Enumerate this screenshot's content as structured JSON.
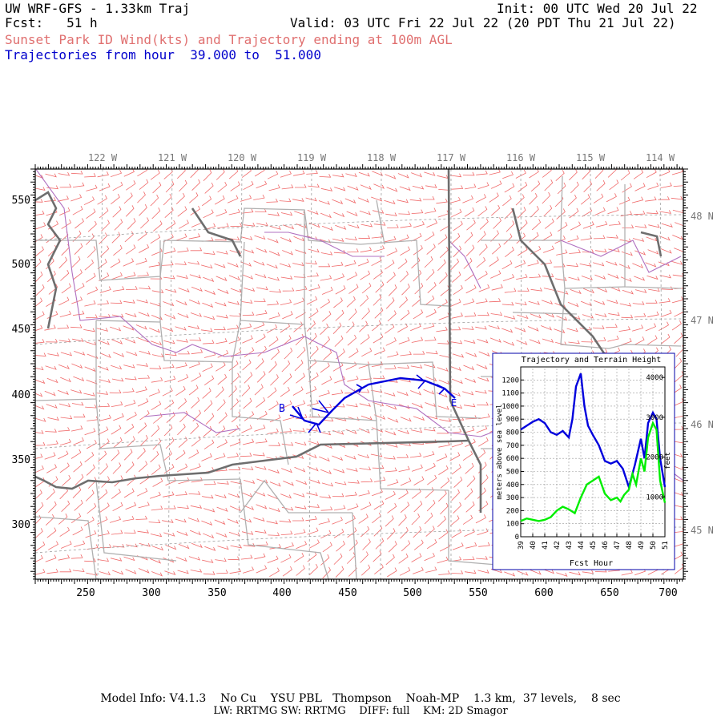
{
  "header": {
    "model_title": "UW WRF-GFS - 1.33km Traj",
    "forecast": "Fcst:   51 h",
    "init": "Init: 00 UTC Wed 20 Jul 22",
    "valid": "Valid: 03 UTC Fri 22 Jul 22 (20 PDT Thu 21 Jul 22)",
    "subtitle": "Sunset Park ID Wind(kts) and Trajectory ending at 100m AGL",
    "traj_range": "Trajectories from hour  39.000 to  51.000"
  },
  "map": {
    "lon_labels": [
      "122 W",
      "121 W",
      "120 W",
      "119 W",
      "118 W",
      "117 W",
      "116 W",
      "115 W",
      "114 W"
    ],
    "lat_labels": [
      "48 N",
      "47 N",
      "46 N",
      "45 N"
    ],
    "x_ticks": [
      "250",
      "300",
      "350",
      "400",
      "450",
      "500",
      "550",
      "600",
      "650",
      "700"
    ],
    "y_ticks": [
      "550",
      "500",
      "450",
      "400",
      "350",
      "300"
    ],
    "colors": {
      "wind_barbs": "#f06a6a",
      "state_borders": "#6e6e6e",
      "county_borders": "#b0b0b0",
      "rivers": "#b070c0",
      "trajectory": "#0000dd",
      "terrain": "#00ee00"
    },
    "trajectory": {
      "start_label": "B",
      "end_label": "E"
    }
  },
  "inset": {
    "title": "Trajectory and Terrain Height",
    "xlabel": "Fcst Hour",
    "ylabel_left": "meters above sea level",
    "ylabel_right": "feet",
    "x_ticks": [
      "39",
      "40",
      "41",
      "42",
      "43",
      "44",
      "45",
      "46",
      "47",
      "48",
      "49",
      "50",
      "51"
    ],
    "y_left_ticks": [
      "0",
      "100",
      "200",
      "300",
      "400",
      "500",
      "600",
      "700",
      "800",
      "900",
      "1000",
      "1100",
      "1200"
    ],
    "y_right_ticks": [
      "1000",
      "2000",
      "3000",
      "4000"
    ]
  },
  "chart_data": {
    "type": "line",
    "title": "Trajectory and Terrain Height",
    "xlabel": "Fcst Hour",
    "ylabel": "meters above sea level",
    "xlim": [
      39,
      51
    ],
    "ylim": [
      0,
      1300
    ],
    "series": [
      {
        "name": "trajectory",
        "x": [
          39,
          39.5,
          40,
          40.5,
          41,
          41.5,
          42,
          42.5,
          43,
          43.3,
          43.6,
          44,
          44.3,
          44.6,
          45,
          45.5,
          46,
          46.5,
          47,
          47.5,
          48,
          48.5,
          49,
          49.3,
          49.6,
          50,
          50.3,
          50.6,
          51
        ],
        "y": [
          820,
          850,
          880,
          900,
          870,
          800,
          780,
          810,
          760,
          900,
          1150,
          1250,
          1000,
          850,
          780,
          700,
          580,
          560,
          580,
          520,
          380,
          550,
          750,
          600,
          870,
          950,
          900,
          600,
          380
        ]
      },
      {
        "name": "terrain",
        "x": [
          39,
          39.5,
          40,
          40.5,
          41,
          41.5,
          42,
          42.5,
          43,
          43.5,
          44,
          44.5,
          45,
          45.5,
          46,
          46.5,
          47,
          47.3,
          47.6,
          48,
          48.3,
          48.6,
          49,
          49.3,
          49.6,
          50,
          50.3,
          50.6,
          51
        ],
        "y": [
          120,
          140,
          130,
          120,
          130,
          150,
          200,
          230,
          210,
          180,
          300,
          400,
          430,
          460,
          330,
          280,
          300,
          270,
          320,
          360,
          480,
          400,
          600,
          500,
          760,
          870,
          820,
          430,
          260
        ]
      }
    ]
  },
  "footer": {
    "line1": "Model Info: V4.1.3    No Cu    YSU PBL   Thompson    Noah-MP    1.3 km,  37 levels,    8 sec",
    "line2": "LW: RRTMG SW: RRTMG    DIFF: full    KM: 2D Smagor"
  }
}
